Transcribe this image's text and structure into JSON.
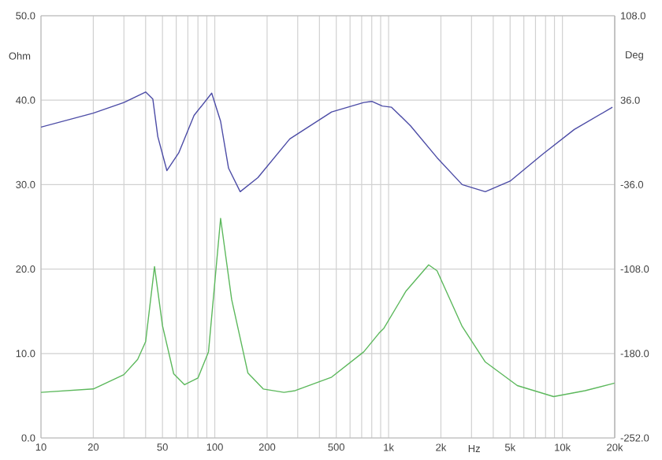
{
  "chart_data": {
    "type": "line",
    "xlabel": "Hz",
    "ylabel": "Ohm",
    "y2label": "Deg",
    "log": "x",
    "grid": true,
    "xlim": [
      10,
      20000
    ],
    "xticks": [
      10,
      20,
      {
        "value": 30,
        "label": null
      },
      {
        "value": 40,
        "label": null
      },
      50,
      {
        "value": 60,
        "label": null
      },
      {
        "value": 70,
        "label": null
      },
      {
        "value": 80,
        "label": null
      },
      {
        "value": 90,
        "label": null
      },
      100,
      200,
      {
        "value": 300,
        "label": null
      },
      {
        "value": 400,
        "label": null
      },
      500,
      {
        "value": 600,
        "label": null
      },
      {
        "value": 700,
        "label": null
      },
      {
        "value": 800,
        "label": null
      },
      {
        "value": 900,
        "label": null
      },
      {
        "value": 1000,
        "label": "1k"
      },
      {
        "value": 2000,
        "label": "2k"
      },
      {
        "value": 3000,
        "label": null
      },
      {
        "value": 4000,
        "label": null
      },
      {
        "value": 5000,
        "label": "5k"
      },
      {
        "value": 6000,
        "label": null
      },
      {
        "value": 7000,
        "label": null
      },
      {
        "value": 8000,
        "label": null
      },
      {
        "value": 9000,
        "label": null
      },
      {
        "value": 10000,
        "label": "10k"
      },
      {
        "value": 20000,
        "label": "20k"
      }
    ],
    "ylim": [
      0,
      50
    ],
    "yticks": [
      {
        "value": 0,
        "label": "0.0"
      },
      {
        "value": 10,
        "label": "10.0"
      },
      {
        "value": 20,
        "label": "20.0"
      },
      {
        "value": 30,
        "label": "30.0"
      },
      {
        "value": 40,
        "label": "40.0"
      },
      {
        "value": 50,
        "label": "50.0"
      }
    ],
    "y2lim": [
      -252,
      108
    ],
    "y2ticks": [
      {
        "value": -252,
        "label": "-252.0"
      },
      {
        "value": -180,
        "label": "-180.0"
      },
      {
        "value": -108,
        "label": "-108.0"
      },
      {
        "value": -36,
        "label": "-36.0"
      },
      {
        "value": 36,
        "label": "36.0"
      },
      {
        "value": 108,
        "label": "108.0"
      }
    ],
    "series": [
      {
        "color": "#4c4ca6",
        "axis": "y2",
        "x": [
          10,
          20,
          30,
          40,
          44,
          47,
          53,
          62,
          76,
          96,
          108,
          120,
          140,
          177,
          270,
          470,
          720,
          800,
          920,
          1040,
          1340,
          1900,
          2650,
          3600,
          5000,
          7700,
          11700,
          19400
        ],
        "values": [
          13,
          25,
          34,
          43,
          37,
          5,
          -24,
          -9,
          23,
          42,
          18,
          -22,
          -42,
          -30,
          3,
          26,
          34,
          35,
          31,
          30,
          14,
          -13,
          -36,
          -42,
          -33,
          -10,
          11,
          30
        ]
      },
      {
        "color": "#5cb85c",
        "x": [
          10,
          20,
          30,
          36,
          40,
          45,
          50,
          58,
          67,
          80,
          92,
          108,
          125,
          155,
          190,
          250,
          290,
          470,
          720,
          880,
          940,
          1260,
          1700,
          1900,
          2650,
          3600,
          5500,
          8900,
          13500,
          20000
        ],
        "values": [
          5.4,
          5.8,
          7.5,
          9.3,
          11.4,
          20.3,
          13.3,
          7.6,
          6.3,
          7.1,
          10.2,
          26,
          16.4,
          7.7,
          5.8,
          5.4,
          5.6,
          7.2,
          10.2,
          12.4,
          13,
          17.4,
          20.5,
          19.8,
          13.2,
          9,
          6.2,
          4.9,
          5.6,
          6.5
        ]
      }
    ]
  }
}
